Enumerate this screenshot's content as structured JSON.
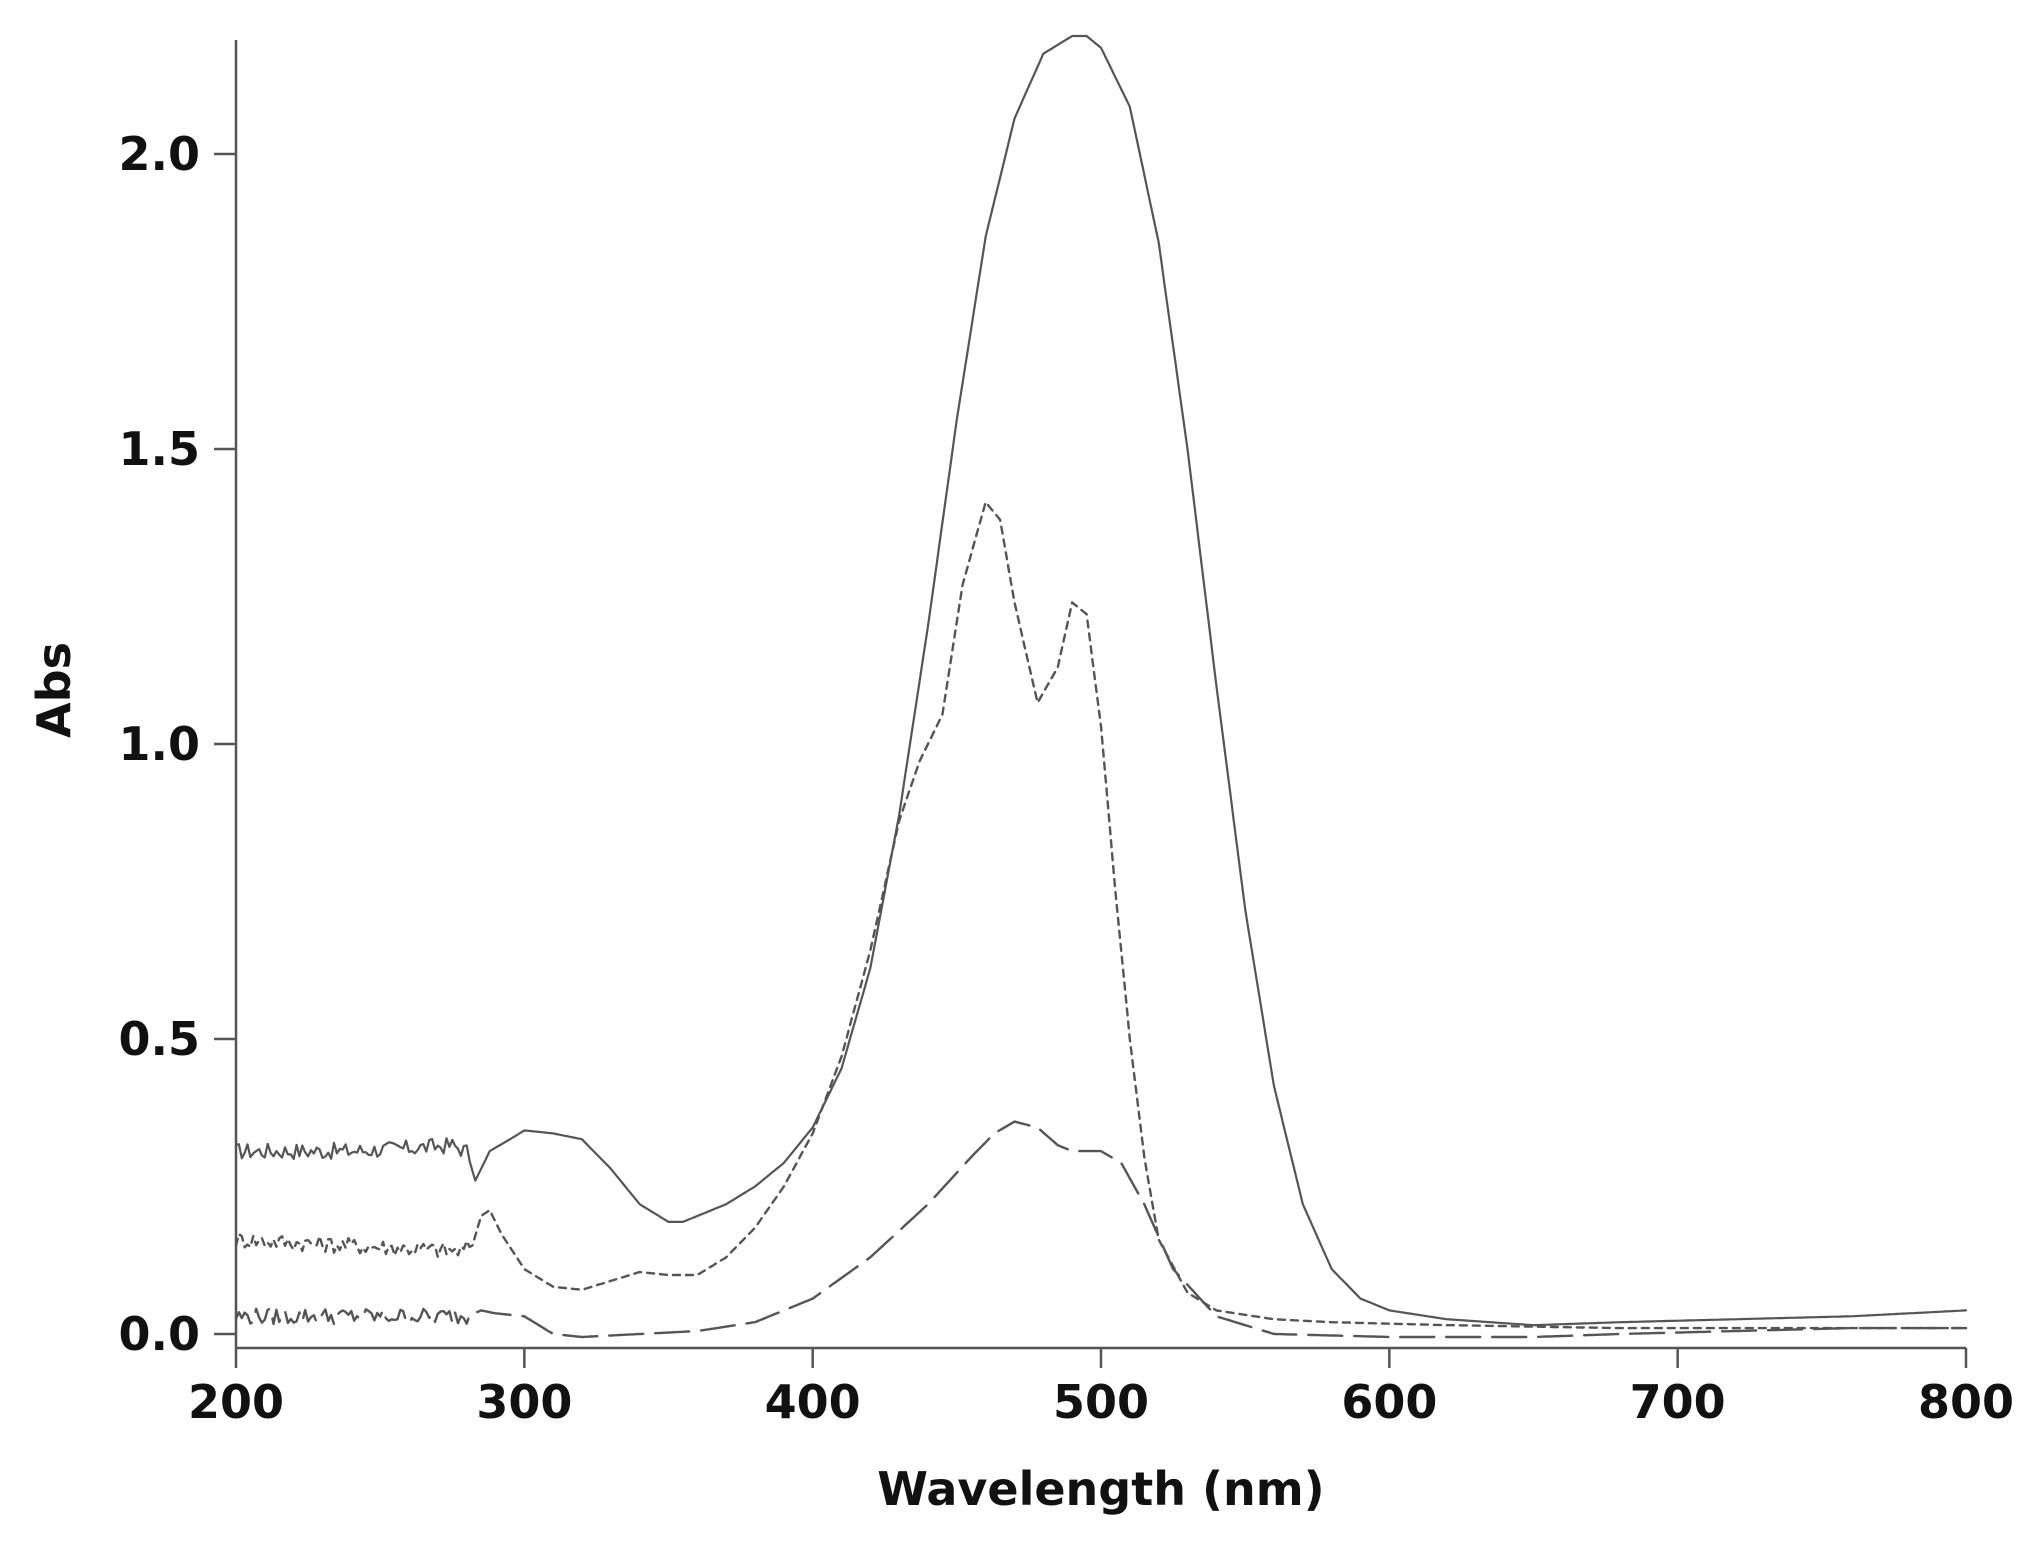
{
  "chart_data": {
    "type": "line",
    "title": "",
    "xlabel": "Wavelength (nm)",
    "ylabel": "Abs",
    "xlim": [
      200,
      800
    ],
    "ylim": [
      -0.04,
      2.2
    ],
    "xticks": [
      200,
      300,
      400,
      500,
      600,
      700,
      800
    ],
    "xtick_labels": [
      "200",
      "300",
      "400",
      "500",
      "600",
      "700",
      "800"
    ],
    "yticks": [
      0.0,
      0.5,
      1.0,
      1.5,
      2.0
    ],
    "ytick_labels": [
      "0.0",
      "0.5",
      "1.0",
      "1.5",
      "2.0"
    ],
    "grid": false,
    "legend": "none",
    "series": [
      {
        "style": "solid",
        "color": "#555555",
        "noisy_range": [
          200,
          280
        ],
        "x": [
          200,
          220,
          240,
          260,
          275,
          280,
          283,
          288,
          295,
          300,
          310,
          320,
          330,
          340,
          350,
          355,
          360,
          370,
          380,
          390,
          400,
          410,
          420,
          430,
          440,
          450,
          460,
          470,
          480,
          490,
          495,
          500,
          510,
          520,
          530,
          540,
          550,
          560,
          570,
          580,
          590,
          600,
          620,
          650,
          680,
          720,
          760,
          800
        ],
        "y": [
          0.31,
          0.31,
          0.31,
          0.315,
          0.32,
          0.31,
          0.26,
          0.31,
          0.33,
          0.345,
          0.34,
          0.33,
          0.28,
          0.22,
          0.19,
          0.19,
          0.2,
          0.22,
          0.25,
          0.29,
          0.35,
          0.45,
          0.62,
          0.88,
          1.2,
          1.55,
          1.86,
          2.06,
          2.17,
          2.2,
          2.2,
          2.18,
          2.08,
          1.85,
          1.5,
          1.1,
          0.72,
          0.42,
          0.22,
          0.11,
          0.06,
          0.04,
          0.025,
          0.015,
          0.02,
          0.025,
          0.03,
          0.04
        ]
      },
      {
        "style": "short-dash",
        "color": "#555555",
        "noisy_range": [
          200,
          280
        ],
        "x": [
          200,
          220,
          240,
          260,
          278,
          282,
          285,
          288,
          292,
          300,
          310,
          320,
          330,
          340,
          350,
          360,
          370,
          380,
          390,
          400,
          410,
          420,
          430,
          437,
          445,
          452,
          460,
          465,
          470,
          478,
          485,
          490,
          495,
          500,
          505,
          510,
          515,
          520,
          530,
          540,
          560,
          580,
          620,
          680,
          720,
          800
        ],
        "y": [
          0.16,
          0.155,
          0.15,
          0.145,
          0.14,
          0.15,
          0.2,
          0.21,
          0.17,
          0.11,
          0.08,
          0.075,
          0.09,
          0.105,
          0.1,
          0.1,
          0.13,
          0.18,
          0.25,
          0.34,
          0.47,
          0.65,
          0.87,
          0.97,
          1.05,
          1.27,
          1.41,
          1.38,
          1.24,
          1.07,
          1.13,
          1.24,
          1.22,
          1.03,
          0.75,
          0.5,
          0.3,
          0.16,
          0.07,
          0.04,
          0.025,
          0.02,
          0.015,
          0.01,
          0.01,
          0.01
        ]
      },
      {
        "style": "long-dash",
        "color": "#555555",
        "noisy_range": [
          200,
          280
        ],
        "x": [
          200,
          220,
          240,
          260,
          280,
          285,
          290,
          300,
          310,
          320,
          340,
          360,
          380,
          400,
          420,
          440,
          455,
          463,
          470,
          478,
          485,
          490,
          500,
          507,
          515,
          525,
          540,
          560,
          600,
          650,
          680,
          720,
          760,
          800
        ],
        "y": [
          0.03,
          0.03,
          0.03,
          0.03,
          0.03,
          0.04,
          0.035,
          0.03,
          0.0,
          -0.005,
          0.0,
          0.005,
          0.02,
          0.06,
          0.13,
          0.22,
          0.3,
          0.34,
          0.36,
          0.35,
          0.32,
          0.31,
          0.31,
          0.29,
          0.22,
          0.11,
          0.03,
          0.0,
          -0.005,
          -0.005,
          0.0,
          0.005,
          0.01,
          0.01
        ]
      }
    ]
  }
}
